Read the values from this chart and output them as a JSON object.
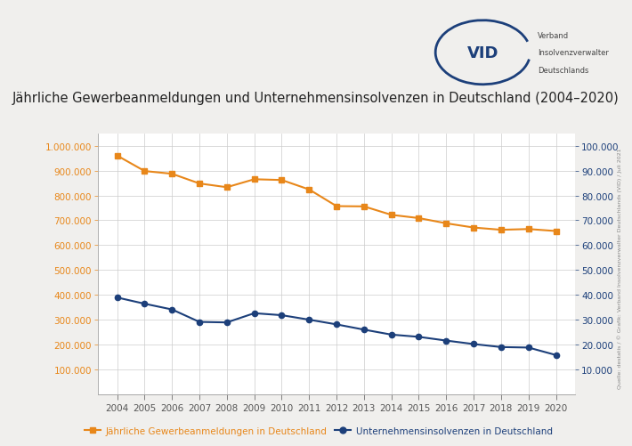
{
  "title": "Jährliche Gewerbeanmeldungen und Unternehmensinsolvenzen in Deutschland (2004–2020)",
  "years": [
    2004,
    2005,
    2006,
    2007,
    2008,
    2009,
    2010,
    2011,
    2012,
    2013,
    2014,
    2015,
    2016,
    2017,
    2018,
    2019,
    2020
  ],
  "gewerbe": [
    960000,
    898000,
    887000,
    848000,
    833000,
    865000,
    862000,
    824000,
    757000,
    756000,
    722000,
    709000,
    688000,
    671000,
    662000,
    665000,
    657000
  ],
  "insolvenzen": [
    39000,
    36500,
    34200,
    29200,
    29000,
    32700,
    31900,
    30100,
    28200,
    26100,
    24100,
    23200,
    21700,
    20300,
    19100,
    18900,
    15900
  ],
  "gewerbe_color": "#E8871A",
  "insolvenzen_color": "#1C3F7A",
  "left_yticks_major": [
    100000,
    200000,
    300000,
    400000,
    500000,
    600000,
    700000,
    800000,
    900000,
    1000000
  ],
  "right_yticks_major": [
    10000,
    20000,
    30000,
    40000,
    50000,
    60000,
    70000,
    80000,
    90000,
    100000
  ],
  "ylim_left": [
    0,
    1050000
  ],
  "ylim_right": [
    0,
    105000
  ],
  "bg_color": "#f0efed",
  "plot_bg_color": "#ffffff",
  "grid_color": "#cccccc",
  "source_text": "Quelle: destatis / © Grafik: Verband Insolvenzverwalter Deutschlands (VID) / Juli 2021",
  "legend_gewerbe": "Jährliche Gewerbeanmeldungen in Deutschland",
  "legend_insolvenzen": "Unternehmensinsolvenzen in Deutschland",
  "title_fontsize": 10.5,
  "tick_fontsize": 7.5,
  "legend_fontsize": 7.5
}
